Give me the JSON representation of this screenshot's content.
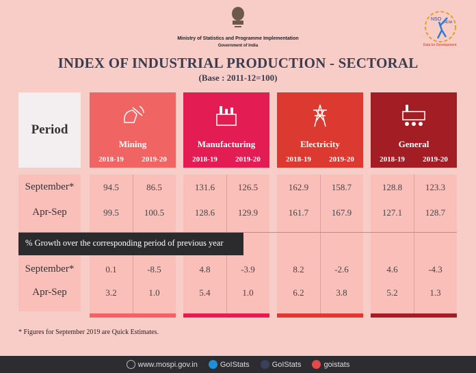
{
  "header": {
    "ministry": "Ministry of Statistics and Programme Implementation",
    "government": "Government of India",
    "logo_tagline": "Data for Development",
    "logo_text": "NSO INDIA"
  },
  "title": "INDEX OF INDUSTRIAL PRODUCTION - SECTORAL",
  "subtitle": "(Base : 2011-12=100)",
  "period_header": "Period",
  "sectors": [
    {
      "name": "Mining",
      "color": "#f06464",
      "icon": "mining-icon",
      "years": [
        "2018-19",
        "2019-20"
      ]
    },
    {
      "name": "Manufacturing",
      "color": "#e31c54",
      "icon": "factory-icon",
      "years": [
        "2018-19",
        "2019-20"
      ]
    },
    {
      "name": "Electricity",
      "color": "#dc3a30",
      "icon": "power-tower-icon",
      "years": [
        "2018-19",
        "2019-20"
      ]
    },
    {
      "name": "General",
      "color": "#a31d24",
      "icon": "industry-icon",
      "years": [
        "2018-19",
        "2019-20"
      ]
    }
  ],
  "index_rows": [
    {
      "period": "September*",
      "values": [
        "94.5",
        "86.5",
        "131.6",
        "126.5",
        "162.9",
        "158.7",
        "128.8",
        "123.3"
      ]
    },
    {
      "period": "Apr-Sep",
      "values": [
        "99.5",
        "100.5",
        "128.6",
        "129.9",
        "161.7",
        "167.9",
        "127.1",
        "128.7"
      ]
    }
  ],
  "growth_banner": "% Growth over the corresponding period of previous year",
  "growth_rows": [
    {
      "period": "September*",
      "values": [
        "0.1",
        "-8.5",
        "4.8",
        "-3.9",
        "8.2",
        "-2.6",
        "4.6",
        "-4.3"
      ]
    },
    {
      "period": "Apr-Sep",
      "values": [
        "3.2",
        "1.0",
        "5.4",
        "1.0",
        "6.2",
        "3.8",
        "5.2",
        "1.3"
      ]
    }
  ],
  "footnote": "* Figures for September 2019 are Quick Estimates.",
  "footer": {
    "website": "www.mospi.gov.in",
    "twitter": "GoIStats",
    "facebook": "GoIStats",
    "instagram": "goistats"
  }
}
